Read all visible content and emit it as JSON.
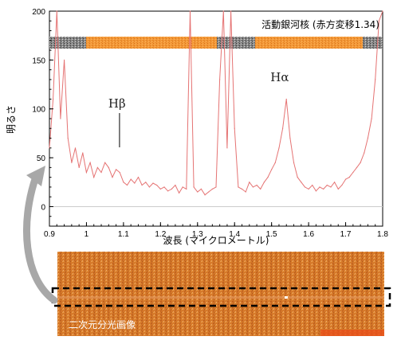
{
  "chart_data": {
    "type": "line",
    "title": "",
    "xlabel": "波長 (マイクロメートル)",
    "ylabel": "明るさ",
    "xlim": [
      0.9,
      1.8
    ],
    "ylim": [
      -20,
      200
    ],
    "x_ticks": [
      "0.9",
      "1",
      "1.1",
      "1.2",
      "1.3",
      "1.4",
      "1.5",
      "1.6",
      "1.7",
      "1.8"
    ],
    "y_ticks": [
      "0",
      "50",
      "100",
      "150",
      "200"
    ],
    "grid": false,
    "legend": "活動銀河核 (赤方変移1.34)",
    "series": [
      {
        "name": "活動銀河核 (赤方変移1.34)",
        "color": "#e57373",
        "x": [
          0.9,
          0.91,
          0.92,
          0.93,
          0.94,
          0.95,
          0.96,
          0.97,
          0.98,
          0.99,
          1.0,
          1.01,
          1.02,
          1.03,
          1.04,
          1.05,
          1.06,
          1.07,
          1.08,
          1.09,
          1.1,
          1.11,
          1.12,
          1.13,
          1.14,
          1.15,
          1.16,
          1.17,
          1.18,
          1.19,
          1.2,
          1.21,
          1.22,
          1.23,
          1.24,
          1.25,
          1.26,
          1.27,
          1.28,
          1.29,
          1.3,
          1.31,
          1.32,
          1.33,
          1.34,
          1.35,
          1.36,
          1.37,
          1.38,
          1.39,
          1.4,
          1.41,
          1.42,
          1.43,
          1.44,
          1.45,
          1.46,
          1.47,
          1.48,
          1.49,
          1.5,
          1.51,
          1.52,
          1.53,
          1.54,
          1.55,
          1.56,
          1.57,
          1.58,
          1.59,
          1.6,
          1.61,
          1.62,
          1.63,
          1.64,
          1.65,
          1.66,
          1.67,
          1.68,
          1.69,
          1.7,
          1.71,
          1.72,
          1.73,
          1.74,
          1.75,
          1.76,
          1.77,
          1.78,
          1.79,
          1.8
        ],
        "values": [
          60,
          110,
          200,
          90,
          150,
          70,
          45,
          60,
          40,
          55,
          35,
          45,
          30,
          40,
          35,
          45,
          40,
          30,
          38,
          35,
          25,
          22,
          28,
          24,
          30,
          22,
          25,
          20,
          24,
          22,
          18,
          20,
          16,
          18,
          22,
          14,
          20,
          18,
          200,
          20,
          15,
          18,
          12,
          15,
          18,
          20,
          130,
          200,
          60,
          200,
          80,
          20,
          18,
          15,
          25,
          20,
          22,
          18,
          25,
          30,
          38,
          45,
          60,
          80,
          110,
          70,
          45,
          30,
          25,
          20,
          18,
          22,
          16,
          20,
          18,
          22,
          20,
          25,
          18,
          22,
          28,
          30,
          35,
          40,
          45,
          55,
          70,
          90,
          130,
          190,
          200
        ]
      }
    ],
    "annotations": [
      {
        "label": "Hβ",
        "x": 1.085
      },
      {
        "label": "Hα",
        "x": 1.54
      }
    ]
  },
  "spectrum_image": {
    "caption": "二次元分光画像"
  },
  "colors": {
    "spectrum_line": "#e57373",
    "band_orange": "#f28c28",
    "image_orange": "#d2691e",
    "arrow_gray": "#a8a8a8"
  }
}
